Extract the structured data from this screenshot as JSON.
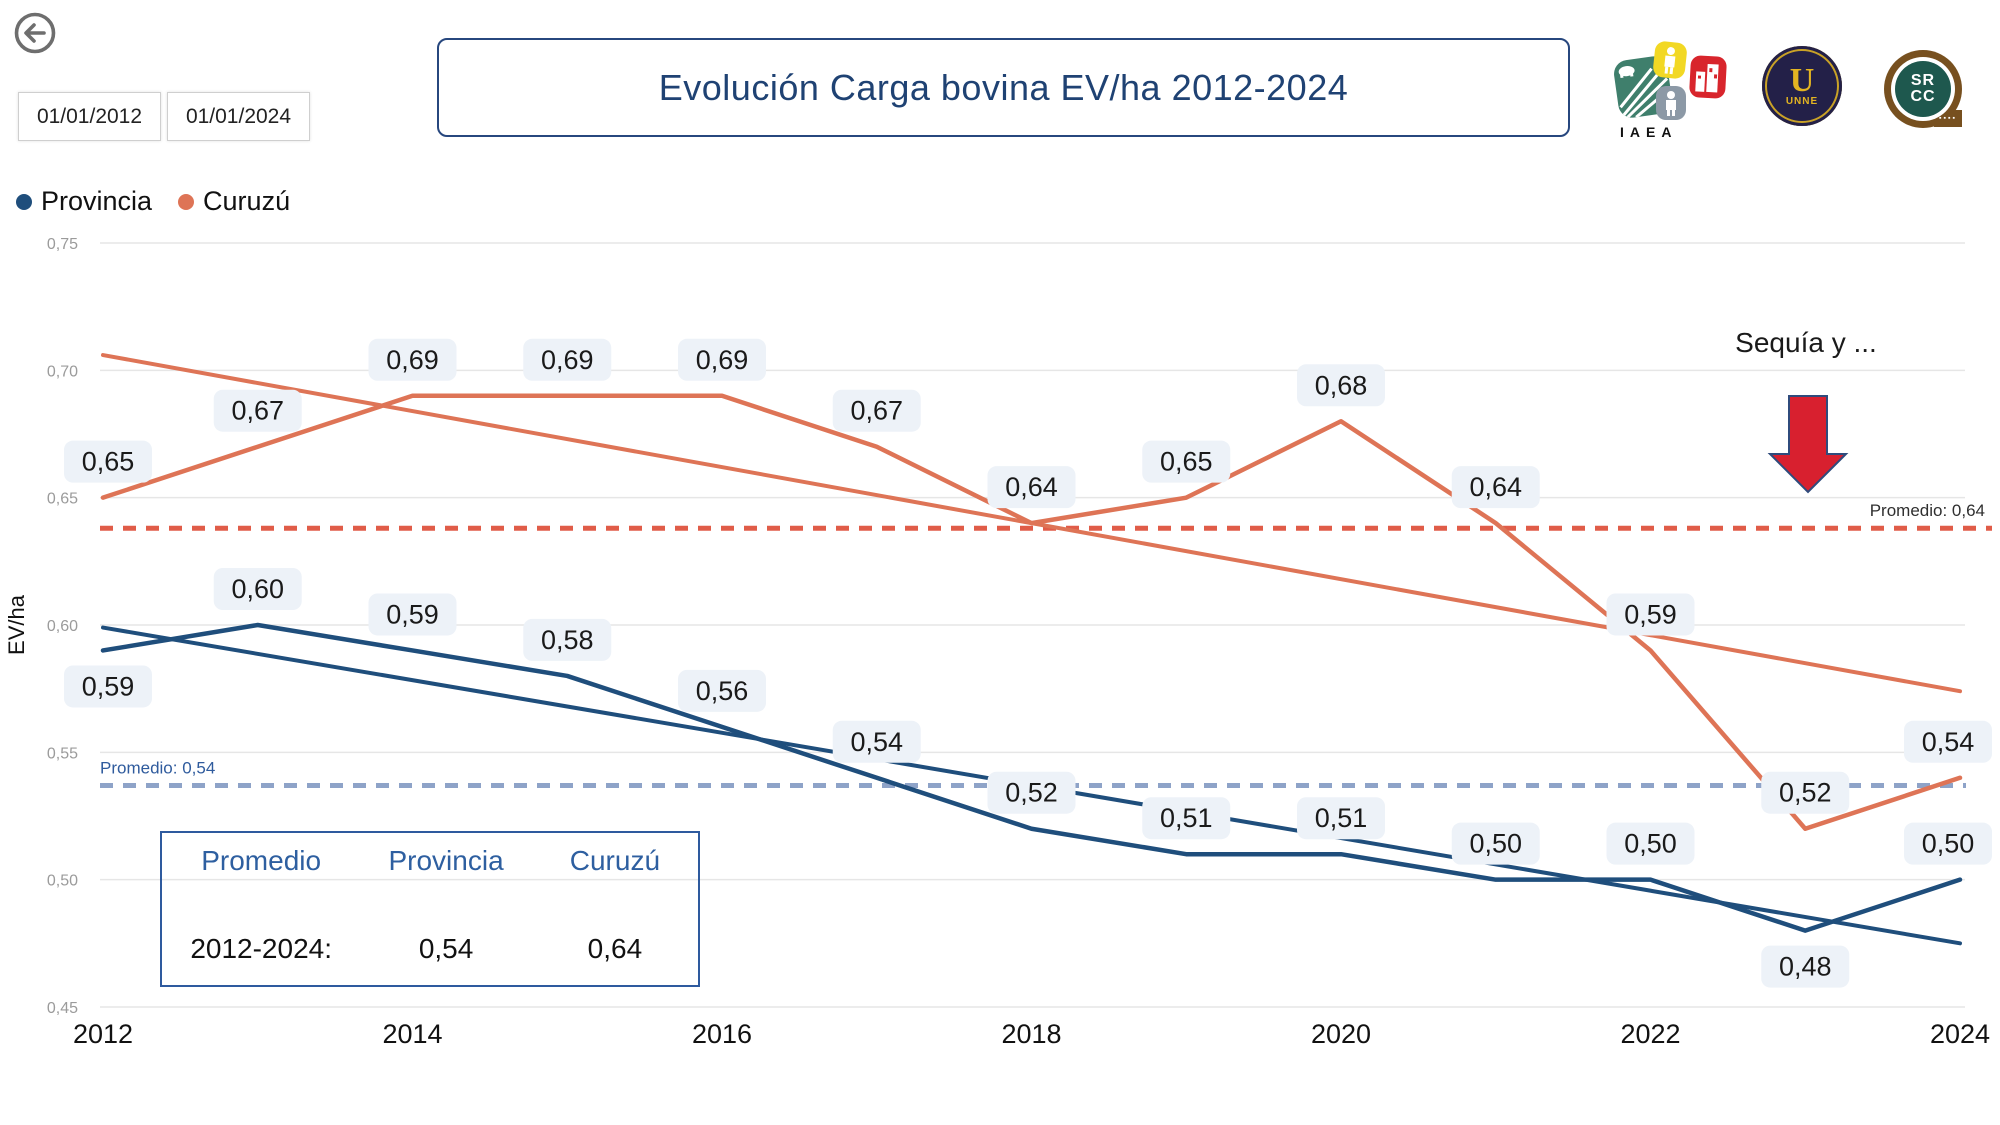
{
  "header": {
    "back_button": {
      "icon": "back-arrow"
    },
    "date_filters": {
      "start": "01/01/2012",
      "end": "01/01/2024"
    },
    "title": "Evolución Carga bovina EV/ha 2012-2024",
    "logos": [
      {
        "name": "IAEA",
        "caption": "IAEA"
      },
      {
        "name": "UNNE",
        "letter": "U",
        "caption": "UNNE"
      },
      {
        "name": "SRCC",
        "line1": "SR",
        "line2": "CC"
      }
    ]
  },
  "legend": [
    {
      "label": "Provincia",
      "color": "#1F4E7C"
    },
    {
      "label": "Curuzú",
      "color": "#DE7456"
    }
  ],
  "chart_data": {
    "type": "line",
    "title": "Evolución Carga bovina EV/ha 2012-2024",
    "xlabel": "",
    "ylabel": "EV/ha",
    "ylim": [
      0.45,
      0.75
    ],
    "grid": true,
    "legend_position": "top-left",
    "x": [
      2012,
      2013,
      2014,
      2015,
      2016,
      2017,
      2018,
      2019,
      2020,
      2021,
      2022,
      2023,
      2024
    ],
    "x_axis_ticks": [
      2012,
      2014,
      2016,
      2018,
      2020,
      2022,
      2024
    ],
    "y_axis_ticks": [
      {
        "value": 0.75,
        "label": "0,75"
      },
      {
        "value": 0.7,
        "label": "0,70"
      },
      {
        "value": 0.65,
        "label": "0,65"
      },
      {
        "value": 0.6,
        "label": "0,60"
      },
      {
        "value": 0.55,
        "label": "0,55"
      },
      {
        "value": 0.5,
        "label": "0,50"
      },
      {
        "value": 0.45,
        "label": "0,45"
      }
    ],
    "series": [
      {
        "name": "Provincia",
        "color": "#1F4E7C",
        "values": [
          0.59,
          0.6,
          0.59,
          0.58,
          0.56,
          0.54,
          0.52,
          0.51,
          0.51,
          0.5,
          0.5,
          0.48,
          0.5
        ],
        "labels": [
          "0,59",
          "0,60",
          "0,59",
          "0,58",
          "0,56",
          "0,54",
          "0,52",
          "0,51",
          "0,51",
          "0,50",
          "0,50",
          "0,48",
          "0,50"
        ],
        "label_positions": [
          "below",
          "above",
          "above",
          "above",
          "above",
          "above",
          "above",
          "above",
          "above",
          "above",
          "above",
          "below",
          "above"
        ],
        "trendline": {
          "start": 0.599,
          "end": 0.475
        },
        "average_line": {
          "value": 0.54,
          "display": "Promedio: 0,54",
          "plot_at": 0.537,
          "label_side": "left",
          "label_color": "#2F5B9D",
          "dash_color": "#8EA3C8"
        }
      },
      {
        "name": "Curuzú",
        "color": "#DE7456",
        "values": [
          0.65,
          0.67,
          0.69,
          0.69,
          0.69,
          0.67,
          0.64,
          0.65,
          0.68,
          0.64,
          0.59,
          0.52,
          0.54
        ],
        "labels": [
          "0,65",
          "0,67",
          "0,69",
          "0,69",
          "0,69",
          "0,67",
          "0,64",
          "0,65",
          "0,68",
          "0,64",
          "0,59",
          "0,52",
          "0,54"
        ],
        "label_positions": [
          "above",
          "above",
          "above",
          "above",
          "above",
          "above",
          "above",
          "above",
          "above",
          "above",
          "above",
          "above",
          "above"
        ],
        "trendline": {
          "start": 0.706,
          "end": 0.574
        },
        "average_line": {
          "value": 0.64,
          "display": "Promedio: 0,64",
          "plot_at": 0.638,
          "label_side": "right",
          "label_color": "#2F2F2F",
          "dash_color": "#E05C48"
        }
      }
    ],
    "annotation": {
      "text": "Sequía y ...",
      "arrow": "down-red",
      "arrow_color": "#D8202F",
      "arrow_border": "#2F4B7C"
    }
  },
  "summary_table": {
    "headers": [
      "Promedio",
      "Provincia",
      "Curuzú"
    ],
    "rows": [
      [
        "2012-2024:",
        "0,54",
        "0,64"
      ]
    ]
  }
}
